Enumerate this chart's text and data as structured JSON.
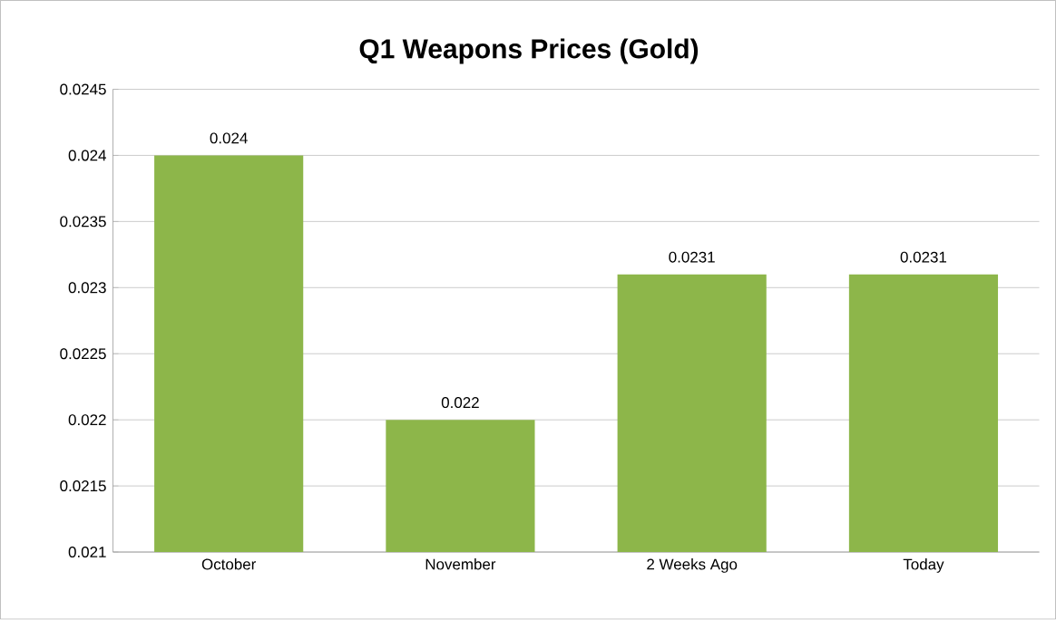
{
  "chart_data": {
    "type": "bar",
    "title": "Q1 Weapons Prices (Gold)",
    "categories": [
      "October",
      "November",
      "2 Weeks Ago",
      "Today"
    ],
    "values": [
      0.024,
      0.022,
      0.0231,
      0.0231
    ],
    "color": "#8db64a",
    "ylim": [
      0.021,
      0.0245
    ],
    "yticks": [
      0.021,
      0.0215,
      0.022,
      0.0225,
      0.023,
      0.0235,
      0.024,
      0.0245
    ],
    "grid": "y",
    "data_labels": true
  }
}
